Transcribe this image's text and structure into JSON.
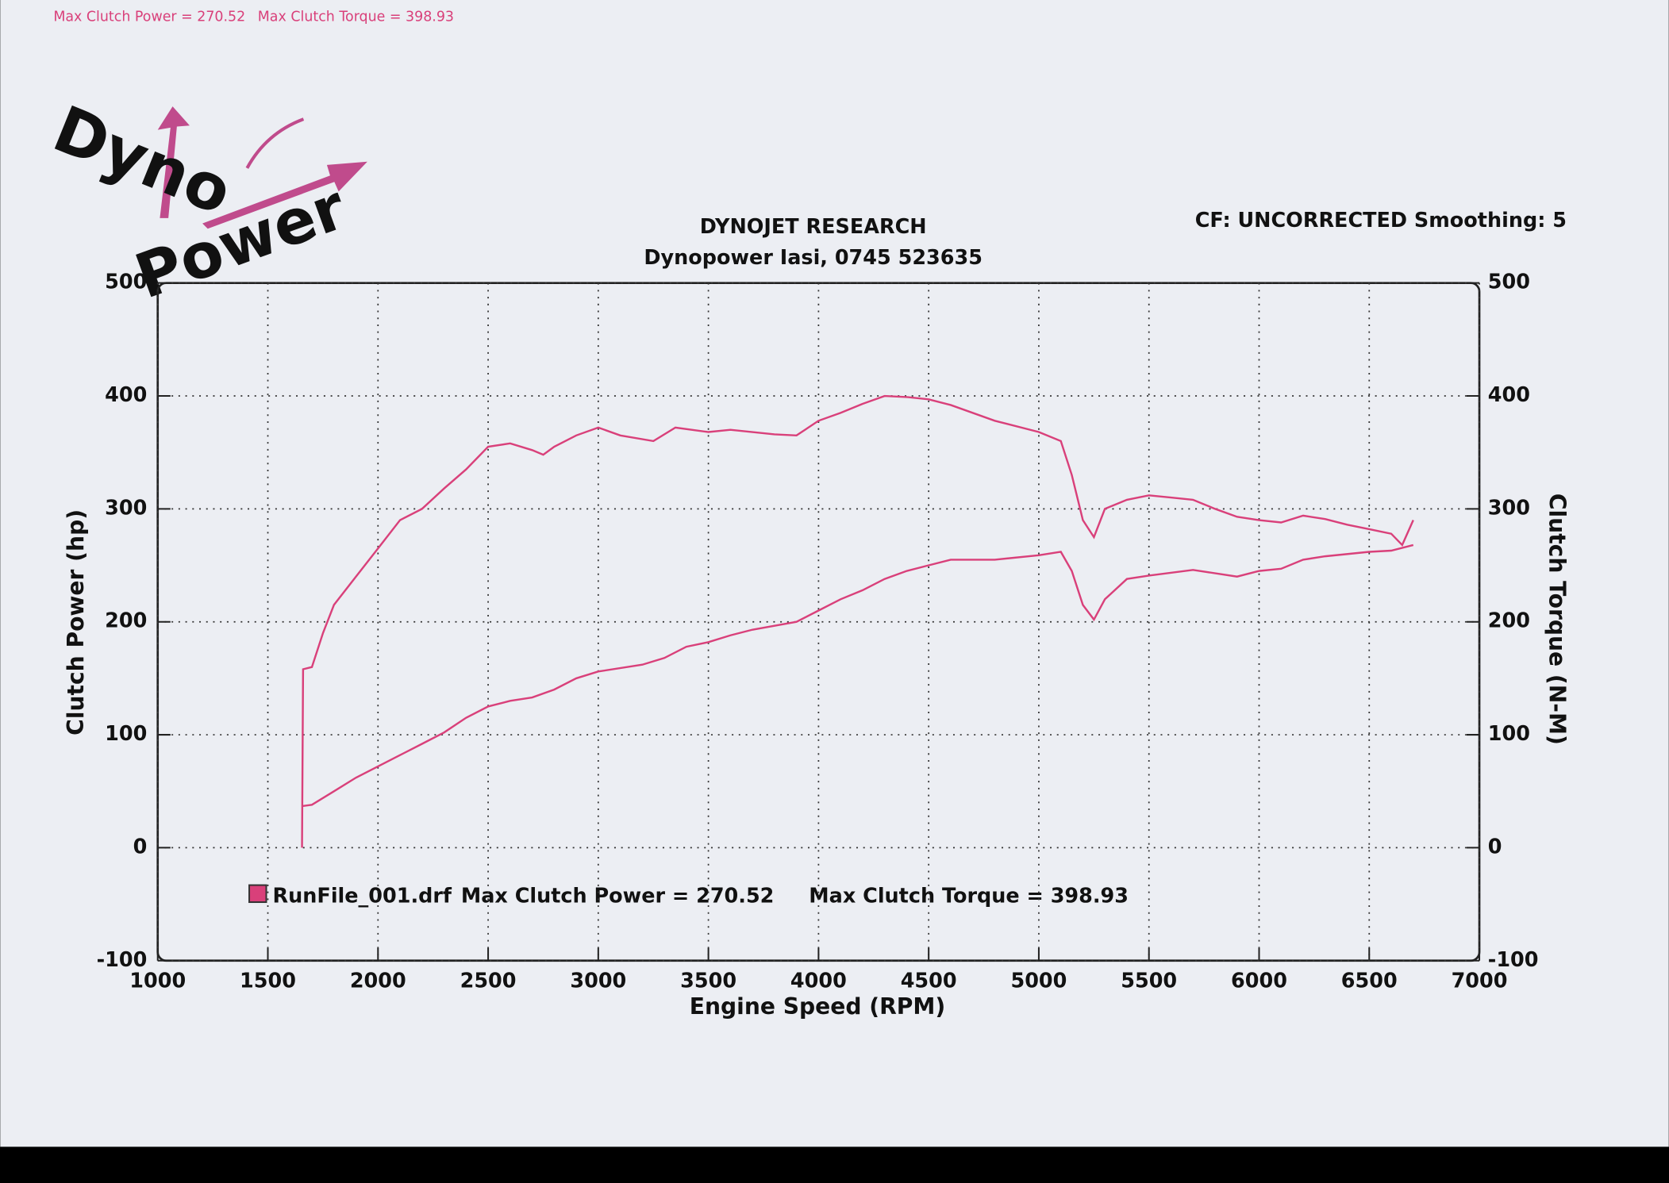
{
  "logo": {
    "line1": "Dyno",
    "line2": "Power"
  },
  "chart_data": {
    "type": "line",
    "header": {
      "power": "Max Clutch Power = 270.52",
      "torque": "Max Clutch Torque = 398.93"
    },
    "title": "DYNOJET RESEARCH",
    "subtitle": "Dynopower Iasi, 0745 523635",
    "settings_text": "CF: UNCORRECTED  Smoothing: 5",
    "xlabel": "Engine Speed (RPM)",
    "ylabel": "Clutch Power (hp)",
    "y2label": "Clutch Torque (N-M)",
    "xlim": [
      1000,
      7000
    ],
    "xticks": [
      1000,
      1500,
      2000,
      2500,
      3000,
      3500,
      4000,
      4500,
      5000,
      5500,
      6000,
      6500,
      7000
    ],
    "ylim": [
      -100,
      500
    ],
    "yticks": [
      -100,
      0,
      100,
      200,
      300,
      400,
      500
    ],
    "y2lim": [
      -100,
      500
    ],
    "y2ticks": [
      -100,
      0,
      100,
      200,
      300,
      400,
      500
    ],
    "grid": true,
    "series": [
      {
        "name": "RunFile_001.drf",
        "color": "#d9407a",
        "x": [
          1660,
          1700,
          1800,
          1900,
          2000,
          2100,
          2200,
          2300,
          2400,
          2500,
          2600,
          2700,
          2800,
          2900,
          3000,
          3200,
          3300,
          3400,
          3500,
          3600,
          3700,
          3900,
          4000,
          4100,
          4200,
          4300,
          4400,
          4500,
          4600,
          4800,
          5000,
          5100,
          5150,
          5200,
          5250,
          5300,
          5400,
          5500,
          5700,
          5900,
          6000,
          6100,
          6200,
          6300,
          6500,
          6600,
          6700
        ],
        "values": [
          37,
          38,
          50,
          62,
          72,
          82,
          92,
          102,
          115,
          125,
          130,
          133,
          140,
          150,
          156,
          162,
          168,
          178,
          182,
          188,
          193,
          200,
          210,
          220,
          228,
          238,
          245,
          250,
          255,
          255,
          259,
          262,
          245,
          215,
          202,
          220,
          238,
          241,
          246,
          240,
          245,
          247,
          255,
          258,
          262,
          263,
          268
        ]
      },
      {
        "color": "#d9407a",
        "axis": "y2",
        "x": [
          1655,
          1660,
          1700,
          1750,
          1800,
          1900,
          2000,
          2100,
          2200,
          2300,
          2400,
          2500,
          2600,
          2700,
          2750,
          2800,
          2900,
          3000,
          3100,
          3250,
          3350,
          3500,
          3600,
          3800,
          3900,
          4000,
          4100,
          4200,
          4300,
          4400,
          4500,
          4600,
          4800,
          5000,
          5100,
          5150,
          5200,
          5250,
          5300,
          5400,
          5500,
          5600,
          5700,
          5800,
          5900,
          6000,
          6100,
          6200,
          6300,
          6400,
          6500,
          6600,
          6650,
          6700
        ],
        "values": [
          0,
          158,
          160,
          190,
          215,
          240,
          265,
          290,
          300,
          318,
          335,
          355,
          358,
          352,
          348,
          355,
          365,
          372,
          365,
          360,
          372,
          368,
          370,
          366,
          365,
          378,
          385,
          393,
          400,
          399,
          397,
          392,
          378,
          368,
          360,
          330,
          290,
          275,
          300,
          308,
          312,
          310,
          308,
          300,
          293,
          290,
          288,
          294,
          291,
          286,
          282,
          278,
          268,
          290
        ]
      }
    ],
    "legend": "bottom-left"
  }
}
